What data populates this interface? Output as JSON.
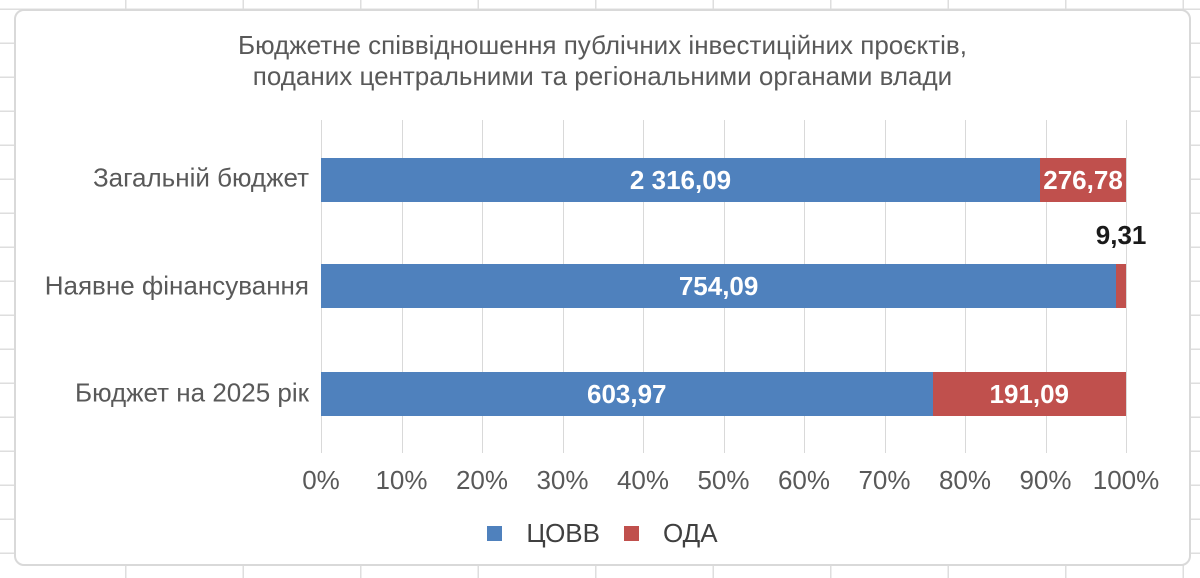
{
  "chart_data": {
    "type": "bar",
    "orientation": "horizontal",
    "stacking": "100%",
    "title_line1": "Бюджетне співвідношення публічних інвестиційних проєктів,",
    "title_line2": "поданих центральними та регіональними органами влади",
    "categories": [
      "Загальній бюджет",
      "Наявне фінансування",
      "Бюджет на 2025 рік"
    ],
    "series": [
      {
        "name": "ЦОВВ",
        "color": "#4F81BD",
        "values": [
          2316.09,
          754.09,
          603.97
        ],
        "labels": [
          "2 316,09",
          "754,09",
          "603,97"
        ]
      },
      {
        "name": "ОДА",
        "color": "#C0504D",
        "values": [
          276.78,
          9.31,
          191.09
        ],
        "labels": [
          "276,78",
          "9,31",
          "191,09"
        ]
      }
    ],
    "x_axis": {
      "min": 0,
      "max": 1,
      "tick_labels": [
        "0%",
        "10%",
        "20%",
        "30%",
        "40%",
        "50%",
        "60%",
        "70%",
        "80%",
        "90%",
        "100%"
      ]
    },
    "legend": {
      "position": "bottom",
      "entries": [
        "ЦОВВ",
        "ОДА"
      ]
    },
    "grid": true,
    "colors": {
      "gridline": "#D9D9D9",
      "axis_text": "#595959",
      "data_label_inside": "#FFFFFF",
      "data_label_outside": "#1A1A1A"
    }
  }
}
